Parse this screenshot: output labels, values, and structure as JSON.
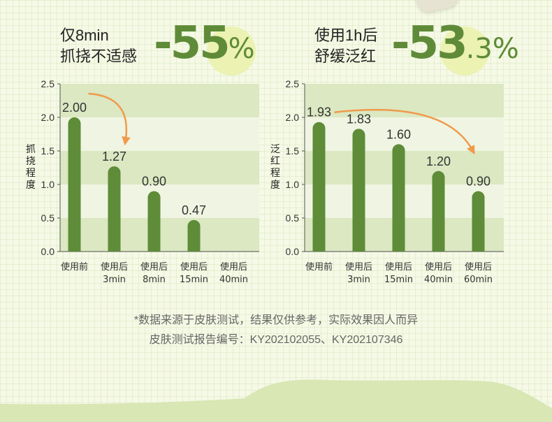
{
  "headline_left": {
    "line1": "仅8min",
    "line2": "抓挠不适感",
    "pct": "-55",
    "pct_suffix": "%"
  },
  "headline_right": {
    "line1": "使用1h后",
    "line2": "舒缓泛红",
    "pct": "-53",
    "pct_suffix": ".3%"
  },
  "chart_data": [
    {
      "type": "bar",
      "ylabel": "抓挠程度",
      "ylim": [
        0,
        2.5
      ],
      "yticks": [
        "0.0",
        "0.5",
        "1.0",
        "1.5",
        "2.0",
        "2.5"
      ],
      "categories": [
        [
          "使用前"
        ],
        [
          "使用后",
          "3min"
        ],
        [
          "使用后",
          "8min"
        ],
        [
          "使用后",
          "15min"
        ],
        [
          "使用后",
          "40min"
        ]
      ],
      "values": [
        2.0,
        1.27,
        0.9,
        0.47,
        null
      ],
      "value_labels": [
        "2.00",
        "1.27",
        "0.90",
        "0.47",
        ""
      ],
      "grid": true,
      "colors": {
        "bar": "#5e8c38",
        "band": "#dbe8c2",
        "band_alt": "#eff5e2",
        "arrow": "#f09a4a"
      }
    },
    {
      "type": "bar",
      "ylabel": "泛红程度",
      "ylim": [
        0,
        2.5
      ],
      "yticks": [
        "0.0",
        "0.5",
        "1.0",
        "1.5",
        "2.0",
        "2.5"
      ],
      "categories": [
        [
          "使用前"
        ],
        [
          "使用后",
          "3min"
        ],
        [
          "使用后",
          "15min"
        ],
        [
          "使用后",
          "40min"
        ],
        [
          "使用后",
          "60min"
        ]
      ],
      "values": [
        1.93,
        1.83,
        1.6,
        1.2,
        0.9
      ],
      "value_labels": [
        "1.93",
        "1.83",
        "1.60",
        "1.20",
        "0.90"
      ],
      "grid": true,
      "colors": {
        "bar": "#5e8c38",
        "band": "#dbe8c2",
        "band_alt": "#eff5e2",
        "arrow": "#f09a4a"
      }
    }
  ],
  "footnote": {
    "line1": "*数据来源于皮肤测试，结果仅供参考，实际效果因人而异",
    "line2": "皮肤测试报告编号：KY202102055、KY202107346"
  }
}
